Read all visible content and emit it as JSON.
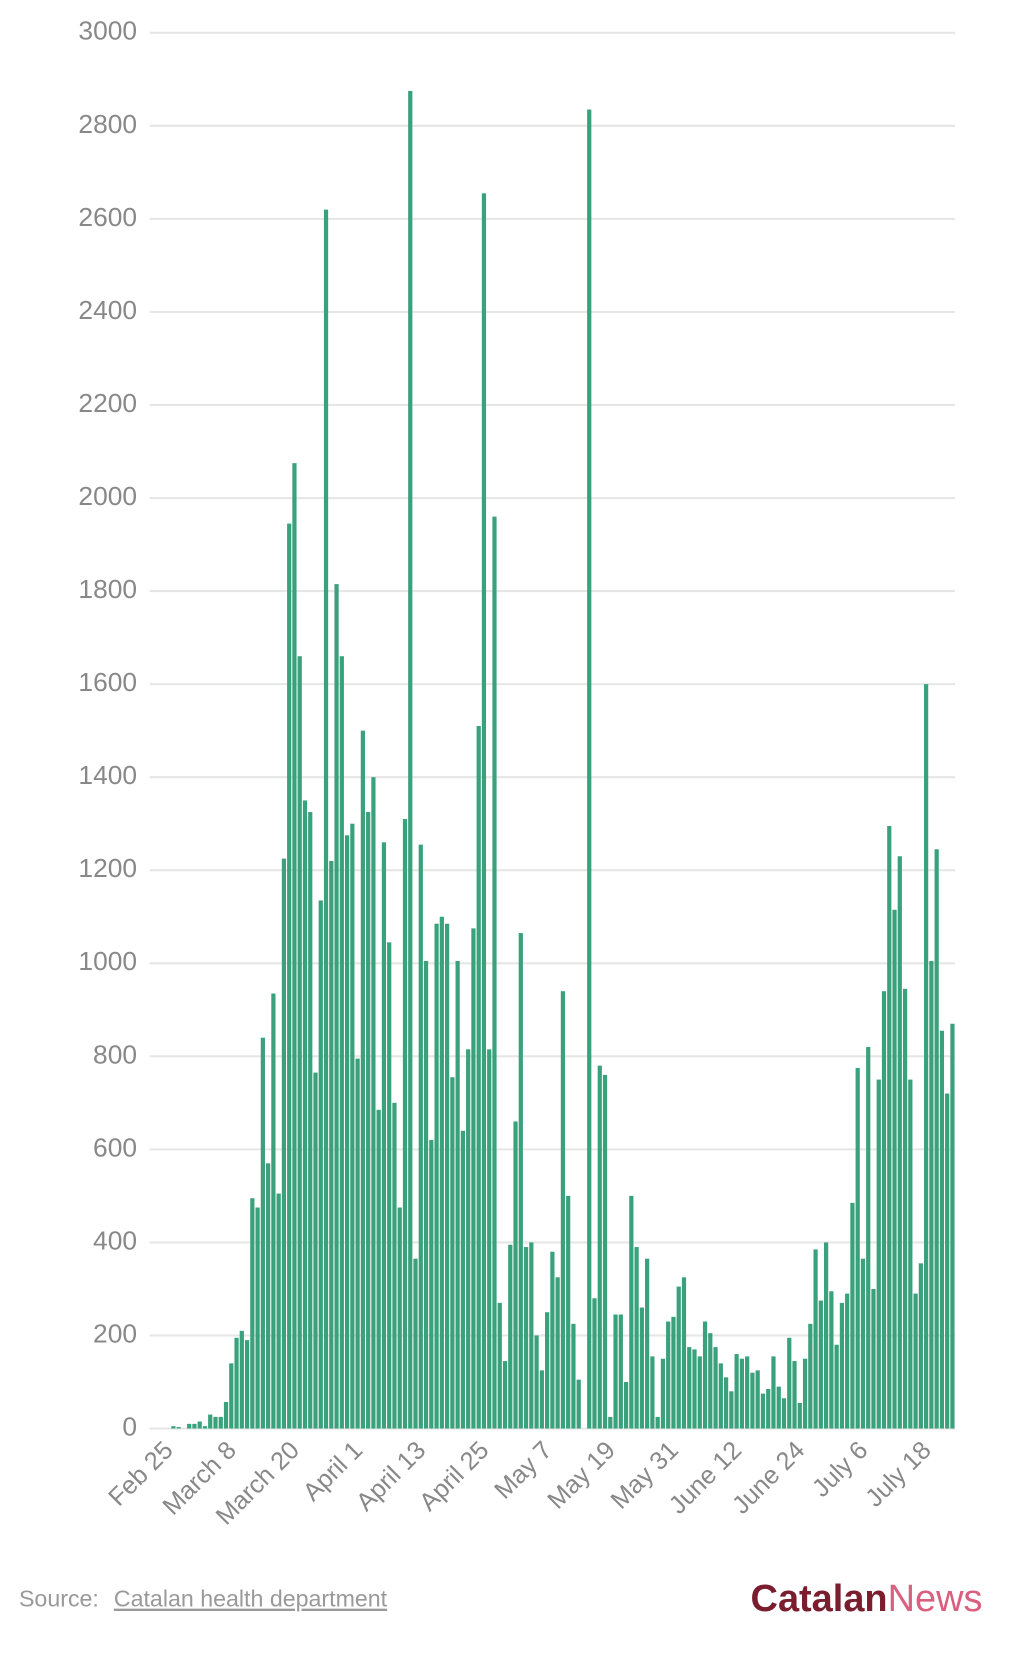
{
  "chart_data": {
    "type": "bar",
    "categories": [
      null,
      null,
      null,
      "Feb 25",
      null,
      null,
      null,
      null,
      null,
      null,
      null,
      null,
      null,
      null,
      null,
      "March 8",
      null,
      null,
      null,
      null,
      null,
      null,
      null,
      null,
      null,
      null,
      null,
      "March 20",
      null,
      null,
      null,
      null,
      null,
      null,
      null,
      null,
      null,
      null,
      null,
      "April 1",
      null,
      null,
      null,
      null,
      null,
      null,
      null,
      null,
      null,
      null,
      null,
      "April 13",
      null,
      null,
      null,
      null,
      null,
      null,
      null,
      null,
      null,
      null,
      null,
      "April 25",
      null,
      null,
      null,
      null,
      null,
      null,
      null,
      null,
      null,
      null,
      null,
      "May 7",
      null,
      null,
      null,
      null,
      null,
      null,
      null,
      null,
      null,
      null,
      null,
      "May 19",
      null,
      null,
      null,
      null,
      null,
      null,
      null,
      null,
      null,
      null,
      null,
      "May 31",
      null,
      null,
      null,
      null,
      null,
      null,
      null,
      null,
      null,
      null,
      null,
      "June 12",
      null,
      null,
      null,
      null,
      null,
      null,
      null,
      null,
      null,
      null,
      null,
      "June 24",
      null,
      null,
      null,
      null,
      null,
      null,
      null,
      null,
      null,
      null,
      null,
      "July 6",
      null,
      null,
      null,
      null,
      null,
      null,
      null,
      null,
      null,
      null,
      null,
      "July 18",
      null,
      null,
      null,
      null,
      null
    ],
    "values": [
      0,
      0,
      0,
      0,
      5,
      3,
      0,
      10,
      10,
      15,
      5,
      30,
      25,
      25,
      57,
      140,
      195,
      210,
      190,
      495,
      475,
      840,
      570,
      935,
      505,
      1225,
      1945,
      2075,
      1660,
      1350,
      1325,
      765,
      1135,
      2620,
      1220,
      1815,
      1660,
      1275,
      1300,
      795,
      1500,
      1325,
      1400,
      685,
      1260,
      1045,
      700,
      475,
      1310,
      2875,
      365,
      1255,
      1005,
      620,
      1085,
      1100,
      1085,
      755,
      1005,
      640,
      815,
      1075,
      1510,
      2655,
      815,
      1960,
      270,
      145,
      395,
      660,
      1065,
      390,
      400,
      200,
      125,
      250,
      380,
      325,
      940,
      500,
      225,
      105,
      0,
      2835,
      280,
      780,
      760,
      25,
      245,
      245,
      100,
      500,
      390,
      260,
      365,
      155,
      25,
      150,
      230,
      240,
      305,
      325,
      175,
      170,
      155,
      230,
      205,
      175,
      140,
      110,
      80,
      160,
      150,
      155,
      120,
      125,
      75,
      85,
      155,
      90,
      65,
      195,
      145,
      55,
      150,
      225,
      385,
      275,
      400,
      295,
      180,
      270,
      290,
      485,
      775,
      365,
      820,
      300,
      750,
      940,
      1295,
      1115,
      1230,
      945,
      750,
      290,
      355,
      1600,
      1005,
      1245,
      855,
      720,
      870
    ],
    "color": "#3aa17d",
    "ylim": [
      0,
      3000
    ],
    "yticks": [
      0,
      200,
      400,
      600,
      800,
      1000,
      1200,
      1400,
      1600,
      1800,
      2000,
      2200,
      2400,
      2600,
      2800,
      3000
    ],
    "grid": true
  },
  "footer": {
    "source_label": "Source:",
    "source_name": "Catalan health department",
    "logo_bold": "Catalan",
    "logo_light": "News"
  }
}
